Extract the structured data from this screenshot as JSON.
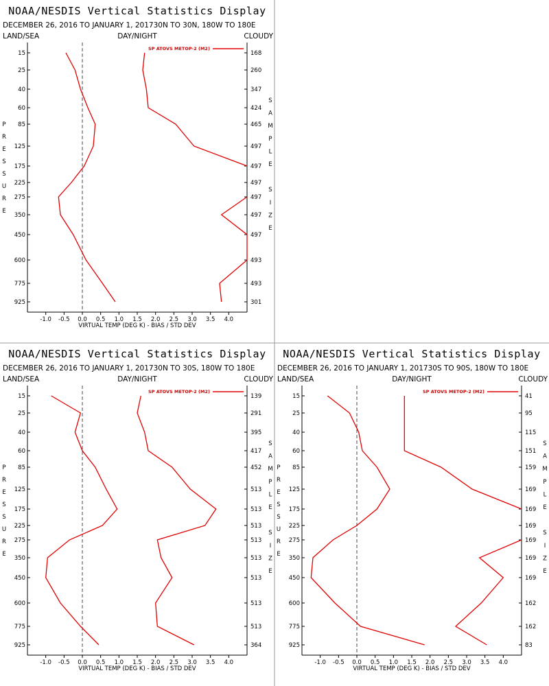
{
  "colors": {
    "series": "#e00000",
    "axis": "#000000",
    "zero_line": "#444444",
    "divider": "#999999"
  },
  "chart_data": [
    {
      "type": "line",
      "title": "NOAA/NESDIS Vertical Statistics Display",
      "date_range": "DECEMBER 26, 2016 TO JANUARY 1, 2017",
      "region": "30N TO 30N, 180W TO 180E",
      "labels": {
        "left": "LAND/SEA",
        "center": "DAY/NIGHT",
        "right": "CLOUDY"
      },
      "xlabel": "VIRTUAL TEMP (DEG K) - BIAS / STD DEV",
      "ylabel": "PRESSURE",
      "y2label": "SAMPLE SIZE",
      "legend": "SP ATOVS METOP-2 (M2)",
      "xlim": [
        -1.5,
        4.5
      ],
      "x_ticks": [
        "-1.0",
        "-0.5",
        "0.0",
        "0.5",
        "1.0",
        "1.5",
        "2.0",
        "2.5",
        "3.0",
        "3.5",
        "4.0"
      ],
      "pressure_levels": [
        "15",
        "25",
        "40",
        "60",
        "85",
        "125",
        "175",
        "225",
        "275",
        "350",
        "450",
        "600",
        "775",
        "925"
      ],
      "sample_size": [
        "168",
        "260",
        "347",
        "424",
        "465",
        "497",
        "497",
        "497",
        "497",
        "497",
        "497",
        "493",
        "493",
        "301"
      ],
      "series": [
        {
          "values": [
            -0.45,
            -0.2,
            -0.05,
            0.15,
            0.35,
            0.3,
            0.05,
            -0.3,
            -0.65,
            -0.6,
            -0.25,
            0.1,
            0.55,
            0.9
          ]
        },
        {
          "values": [
            1.7,
            1.65,
            1.75,
            1.8,
            2.55,
            3.05,
            4.5,
            null,
            4.5,
            3.8,
            4.5,
            4.5,
            3.75,
            3.8
          ]
        }
      ]
    },
    {
      "type": "line",
      "title": "NOAA/NESDIS Vertical Statistics Display",
      "date_range": "DECEMBER 26, 2016 TO JANUARY 1, 2017",
      "region": "30N TO 30S, 180W TO 180E",
      "labels": {
        "left": "LAND/SEA",
        "center": "DAY/NIGHT",
        "right": "CLOUDY"
      },
      "xlabel": "VIRTUAL TEMP (DEG K) - BIAS / STD DEV",
      "ylabel": "PRESSURE",
      "y2label": "SAMPLE SIZE",
      "legend": "SP ATOVS METOP-2 (M2)",
      "xlim": [
        -1.5,
        4.5
      ],
      "x_ticks": [
        "-1.0",
        "-0.5",
        "0.0",
        "0.5",
        "1.0",
        "1.5",
        "2.0",
        "2.5",
        "3.0",
        "3.5",
        "4.0"
      ],
      "pressure_levels": [
        "15",
        "25",
        "40",
        "60",
        "85",
        "125",
        "175",
        "225",
        "275",
        "350",
        "450",
        "600",
        "775",
        "925"
      ],
      "sample_size": [
        "139",
        "291",
        "395",
        "417",
        "452",
        "513",
        "513",
        "513",
        "513",
        "513",
        "513",
        "513",
        "513",
        "364"
      ],
      "series": [
        {
          "values": [
            -0.85,
            -0.05,
            -0.2,
            0.0,
            0.35,
            0.65,
            0.95,
            0.55,
            -0.35,
            -0.95,
            -1.0,
            -0.6,
            -0.05,
            0.45
          ]
        },
        {
          "values": [
            1.6,
            1.5,
            1.7,
            1.8,
            2.45,
            2.95,
            3.65,
            3.35,
            2.05,
            2.15,
            2.45,
            2.0,
            2.05,
            3.05
          ]
        }
      ]
    },
    {
      "type": "line",
      "title": "NOAA/NESDIS Vertical Statistics Display",
      "date_range": "DECEMBER 26, 2016 TO JANUARY 1, 2017",
      "region": "30S TO 90S, 180W TO 180E",
      "labels": {
        "left": "LAND/SEA",
        "center": "DAY/NIGHT",
        "right": "CLOUDY"
      },
      "xlabel": "VIRTUAL TEMP (DEG K) - BIAS / STD DEV",
      "ylabel": "PRESSURE",
      "y2label": "SAMPLE SIZE",
      "legend": "SP ATOVS METOP-2 (M2)",
      "xlim": [
        -1.5,
        4.5
      ],
      "x_ticks": [
        "-1.0",
        "-0.5",
        "0.0",
        "0.5",
        "1.0",
        "1.5",
        "2.0",
        "2.5",
        "3.0",
        "3.5",
        "4.0"
      ],
      "pressure_levels": [
        "15",
        "25",
        "40",
        "60",
        "85",
        "125",
        "175",
        "225",
        "275",
        "350",
        "450",
        "600",
        "775",
        "925"
      ],
      "sample_size": [
        "41",
        "95",
        "115",
        "151",
        "159",
        "169",
        "169",
        "169",
        "169",
        "169",
        "169",
        "162",
        "162",
        "83"
      ],
      "series": [
        {
          "values": [
            -0.8,
            -0.2,
            0.05,
            0.15,
            0.55,
            0.9,
            0.55,
            0.0,
            -0.65,
            -1.2,
            -1.25,
            -0.6,
            0.1,
            1.85
          ]
        },
        {
          "values": [
            1.3,
            1.3,
            1.3,
            1.3,
            2.3,
            3.15,
            4.5,
            null,
            4.5,
            3.35,
            4.0,
            3.4,
            2.7,
            3.55
          ]
        }
      ]
    }
  ]
}
